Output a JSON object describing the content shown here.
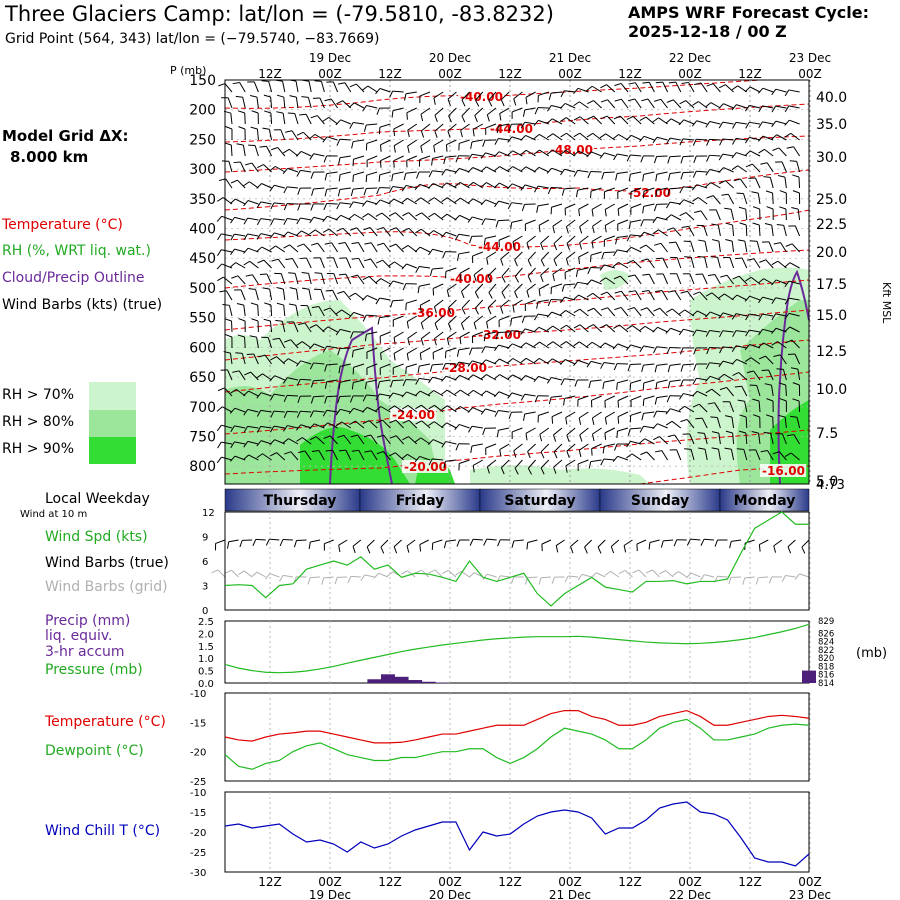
{
  "header": {
    "title": "Three Glaciers Camp:  lat/lon = (-79.5810, -83.8232)",
    "grid_point": "Grid Point (564, 343) lat/lon = (−79.5740, −83.7669)",
    "cycle_line1": "AMPS WRF Forecast Cycle:",
    "cycle_line2": "2025-12-18 / 00  Z"
  },
  "legend": {
    "model_grid": "Model Grid ΔX:",
    "model_grid_value": "8.000 km",
    "temperature": "Temperature (°C)",
    "rh": "RH (%, WRT liq. wat.)",
    "cloud": "Cloud/Precip Outline",
    "wind": "Wind Barbs (kts) (true)",
    "rh70": "RH > 70%",
    "rh80": "RH > 80%",
    "rh90": "RH > 90%",
    "local_weekday": "Local Weekday",
    "wind_at": "Wind at 10 m",
    "wind_spd": "Wind Spd (kts)",
    "wind_barbs_true": "Wind Barbs (true)",
    "wind_barbs_grid": "Wind Barbs (grid)",
    "precip1": "Precip (mm)",
    "precip2": "liq. equiv.",
    "precip3": "3-hr accum",
    "pressure": "Pressure (mb)",
    "temp2": "Temperature (°C)",
    "dewpoint": "Dewpoint (°C)",
    "windchill": "Wind Chill T (°C)"
  },
  "colors": {
    "temperature": "#e00000",
    "rh": "#22bb22",
    "cloud": "#6a2a9a",
    "grid_barb": "#b0b0b0",
    "wind_chill": "#0000bb",
    "rh70": "#cdf5cd",
    "rh80": "#9be69b",
    "rh90": "#33dd33",
    "weekday_band": "#2a3a8a"
  },
  "chart_data": {
    "type": "meteogram",
    "time_top_labels": [
      "12Z",
      "00Z",
      "12Z",
      "00Z",
      "12Z",
      "00Z",
      "12Z",
      "00Z",
      "12Z",
      "00Z"
    ],
    "date_labels": [
      "19 Dec",
      "20 Dec",
      "21 Dec",
      "22 Dec",
      "23 Dec"
    ],
    "weekdays": [
      "Thursday",
      "Friday",
      "Saturday",
      "Sunday",
      "Monday"
    ],
    "pressure_axis": {
      "label": "P (mb)",
      "ticks": [
        150,
        200,
        250,
        300,
        350,
        400,
        450,
        500,
        550,
        600,
        650,
        700,
        750,
        800
      ],
      "range": [
        150,
        830
      ]
    },
    "height_axis": {
      "label": "Kft MSL",
      "ticks": [
        "40.0",
        "35.0",
        "30.0",
        "25.0",
        "22.5",
        "20.0",
        "17.5",
        "15.0",
        "12.5",
        "10.0",
        "7.5",
        "5.0"
      ],
      "surface": "4.73"
    },
    "temperature_contour_labels": [
      "-40.00",
      "-44.00",
      "-48.00",
      "-52.00",
      "-44.00",
      "-40.00",
      "-36.00",
      "-32.00",
      "-28.00",
      "-24.00",
      "-20.00",
      "-16.00"
    ],
    "panels": {
      "wind": {
        "ylim": [
          0,
          12
        ],
        "yticks": [
          0,
          3,
          6,
          9,
          12
        ],
        "speed_kts": [
          3.0,
          3.1,
          3.0,
          1.5,
          3.0,
          3.2,
          5.0,
          5.5,
          6.0,
          5.5,
          6.5,
          5.0,
          5.5,
          4.0,
          4.5,
          4.4,
          4.0,
          3.5,
          6.0,
          4.0,
          3.5,
          4.0,
          4.5,
          2.0,
          0.5,
          2.0,
          3.0,
          4.0,
          2.8,
          2.5,
          2.2,
          3.5,
          3.5,
          3.6,
          3.2,
          3.5,
          3.5,
          3.8,
          7.0,
          10.0,
          11.0,
          12.0,
          10.5,
          10.5
        ]
      },
      "pressure_precip": {
        "precip_ylim": [
          0,
          2.5
        ],
        "precip_ticks": [
          "0.0",
          "0.5",
          "1.0",
          "1.5",
          "2.0",
          "2.5"
        ],
        "pressure_ticks": [
          "814",
          "816",
          "818",
          "820",
          "822",
          "824",
          "826",
          "829"
        ],
        "pressure_range": [
          814,
          829
        ],
        "precip_mm": [
          0,
          0,
          0,
          0,
          0,
          0,
          0,
          0,
          0,
          0,
          0,
          0.15,
          0.35,
          0.25,
          0.12,
          0.05,
          0.02,
          0,
          0,
          0,
          0,
          0,
          0,
          0,
          0,
          0,
          0,
          0,
          0,
          0,
          0,
          0,
          0,
          0,
          0,
          0,
          0,
          0,
          0,
          0,
          0,
          0,
          0,
          0.5
        ],
        "pressure_mb": [
          818.5,
          817.6,
          817.0,
          816.6,
          816.5,
          816.6,
          816.9,
          817.4,
          818.0,
          818.8,
          819.5,
          820.2,
          820.9,
          821.6,
          822.2,
          822.7,
          823.2,
          823.6,
          824.0,
          824.4,
          824.7,
          824.9,
          825.1,
          825.2,
          825.2,
          825.2,
          825.3,
          825.1,
          824.8,
          824.5,
          824.2,
          823.9,
          823.7,
          823.6,
          823.5,
          823.6,
          823.8,
          824.1,
          824.5,
          825.0,
          825.7,
          826.4,
          827.2,
          828.2
        ],
        "unit": "(mb)"
      },
      "temperature": {
        "ylim": [
          -25,
          -10
        ],
        "yticks": [
          -25,
          -20,
          -15,
          -10
        ],
        "temperature_c": [
          -17.5,
          -18.0,
          -18.2,
          -17.5,
          -17.0,
          -16.8,
          -16.5,
          -16.5,
          -17.0,
          -17.5,
          -18.0,
          -18.5,
          -18.5,
          -18.4,
          -18.0,
          -17.5,
          -17.0,
          -17.0,
          -16.5,
          -16.0,
          -15.5,
          -15.5,
          -15.5,
          -14.5,
          -13.5,
          -13.0,
          -13.0,
          -14.0,
          -14.5,
          -15.5,
          -15.5,
          -15.0,
          -14.0,
          -13.5,
          -13.0,
          -14.0,
          -15.5,
          -15.5,
          -15.0,
          -14.5,
          -14.0,
          -13.8,
          -14.0,
          -14.3
        ],
        "dewpoint_c": [
          -20.5,
          -22.5,
          -23.0,
          -22.0,
          -21.5,
          -20.0,
          -19.0,
          -18.5,
          -19.5,
          -20.5,
          -21.0,
          -21.5,
          -21.5,
          -21.0,
          -21.0,
          -20.5,
          -20.0,
          -20.0,
          -19.5,
          -19.5,
          -21.0,
          -22.0,
          -21.0,
          -19.5,
          -17.5,
          -16.0,
          -16.5,
          -17.0,
          -18.0,
          -19.5,
          -19.5,
          -18.0,
          -16.0,
          -15.0,
          -14.5,
          -16.0,
          -18.0,
          -18.0,
          -17.5,
          -17.0,
          -16.0,
          -15.5,
          -15.3,
          -15.5
        ]
      },
      "wind_chill": {
        "ylim": [
          -30,
          -10
        ],
        "yticks": [
          -30,
          -25,
          -20,
          -15,
          -10
        ],
        "wind_chill_c": [
          -18.5,
          -18.0,
          -19.0,
          -18.5,
          -18.0,
          -20.5,
          -22.5,
          -22.0,
          -23.0,
          -25.0,
          -22.5,
          -24.0,
          -23.0,
          -21.0,
          -19.5,
          -18.5,
          -17.5,
          -17.5,
          -24.5,
          -20.0,
          -21.0,
          -20.5,
          -18.0,
          -16.0,
          -15.0,
          -14.5,
          -15.0,
          -16.5,
          -20.5,
          -19.0,
          -19.0,
          -17.0,
          -14.0,
          -13.0,
          -12.5,
          -15.0,
          -15.5,
          -17.0,
          -21.5,
          -26.5,
          -27.5,
          -27.5,
          -28.5,
          -25.5
        ]
      }
    }
  }
}
